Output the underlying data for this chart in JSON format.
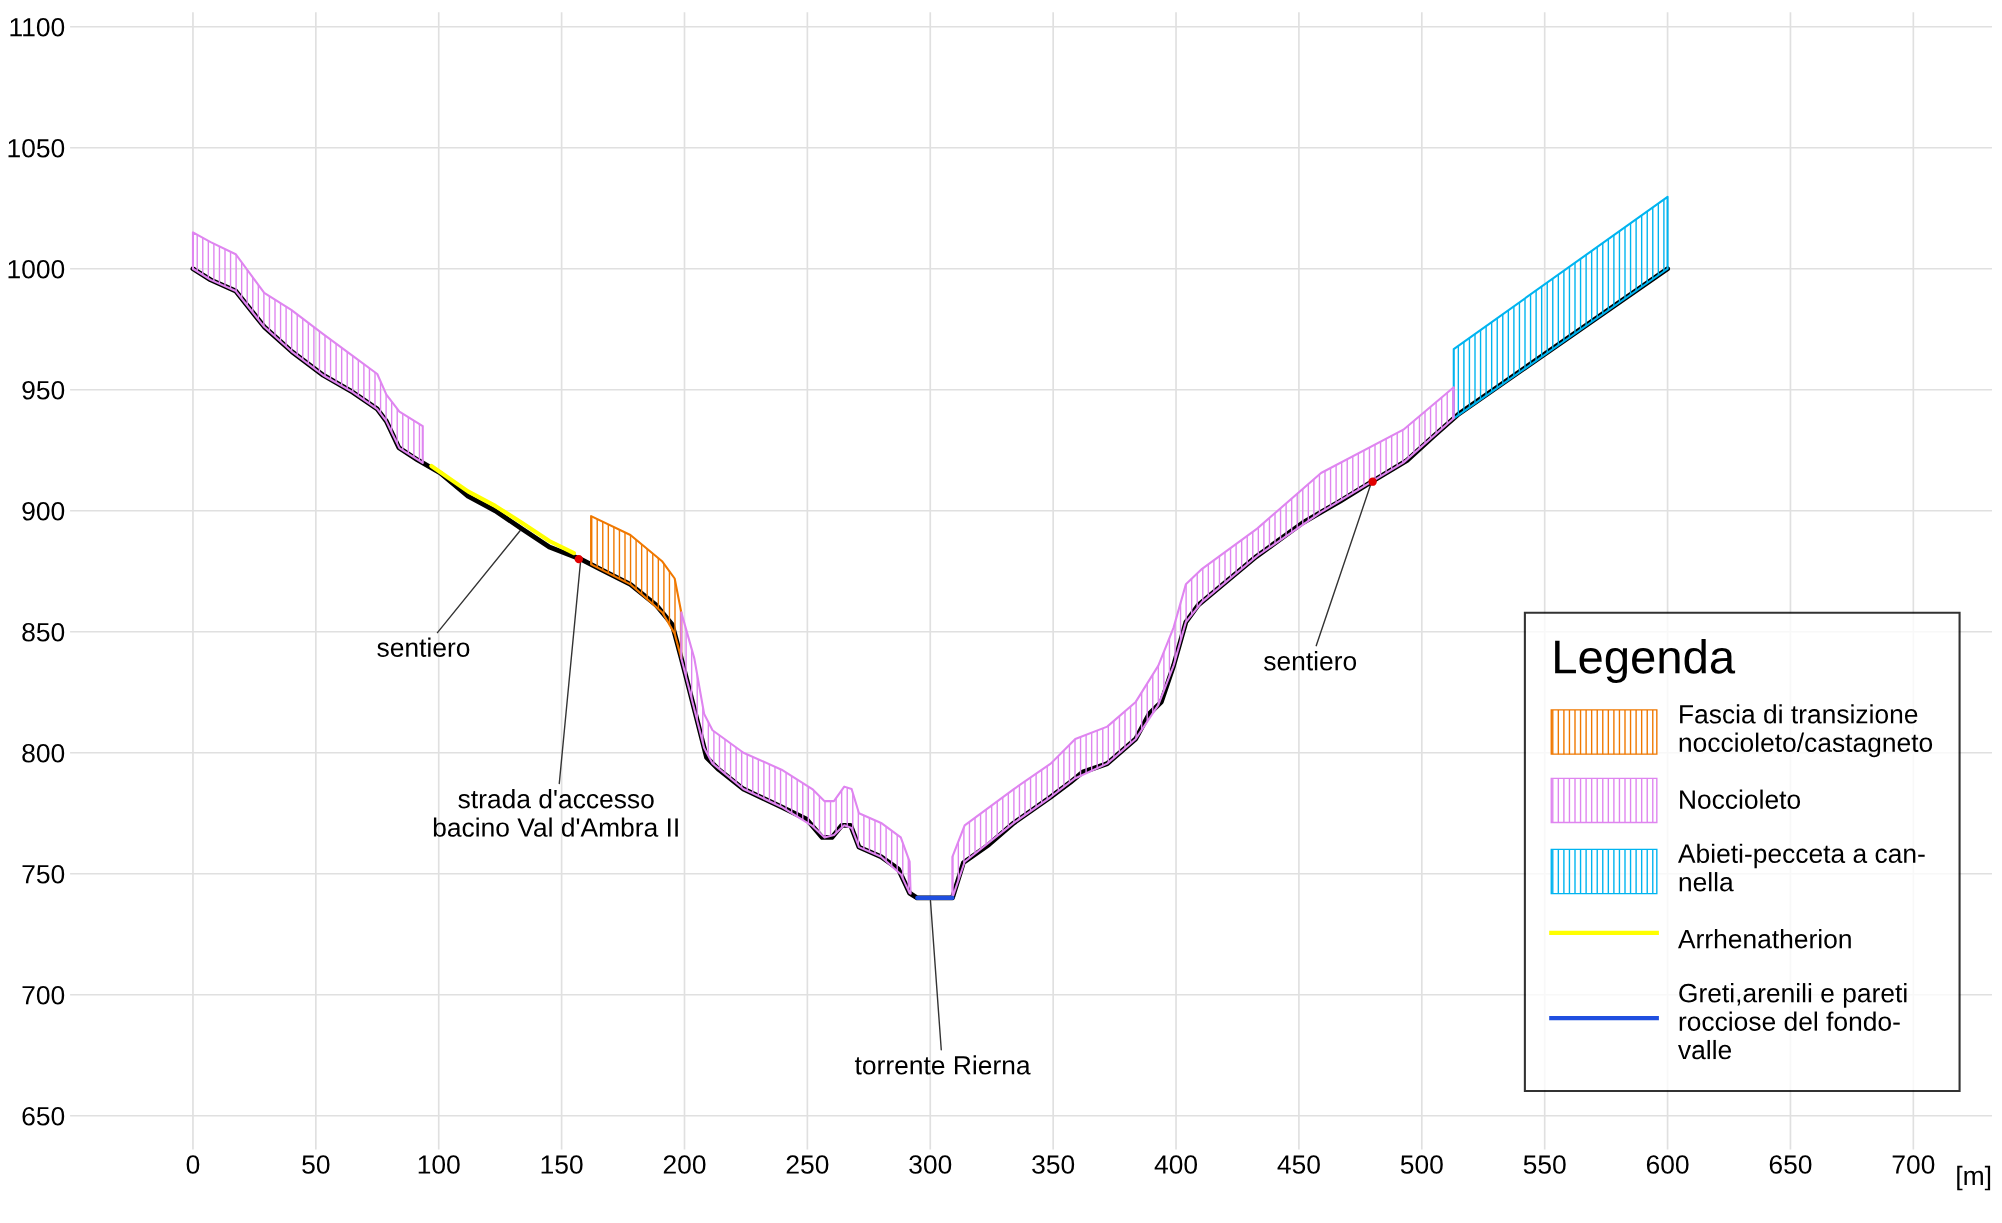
{
  "chart_data": {
    "type": "line",
    "xlabel": "[m]",
    "legend_title": "Legenda",
    "legend": "bottom right",
    "grid": true,
    "marker": "none",
    "xlim": [
      -50,
      732
    ],
    "ylim": [
      636,
      1106
    ],
    "xticks": [
      0,
      50,
      100,
      150,
      200,
      250,
      300,
      350,
      400,
      450,
      500,
      550,
      600,
      650,
      700
    ],
    "yticks": [
      650,
      700,
      750,
      800,
      850,
      900,
      950,
      1000,
      1050,
      1100
    ],
    "series": [
      {
        "type": "area",
        "name": "Fascia di transizione\nnoccioleto/castagneto",
        "color": "#f07800",
        "x": [
          162,
          178,
          191,
          196,
          198.7
        ],
        "values": [
          897.8,
          890,
          879,
          872,
          858
        ]
      },
      {
        "type": "area",
        "name": "Noccioleto",
        "color": "#df85f0",
        "x": [
          0,
          7.2,
          17.4,
          29,
          40,
          53,
          65,
          75,
          78.7,
          84,
          93.5
        ],
        "values": [
          1015,
          1011,
          1006,
          990,
          983,
          973,
          964,
          956.5,
          948,
          941,
          935
        ]
      },
      {
        "type": "area",
        "name": "Abieti-pecceta a can-\nnella",
        "color": "#00b4f0",
        "x": [
          513,
          600
        ],
        "values": [
          966.8,
          1029.7
        ]
      },
      {
        "type": "line",
        "name": "Arrhenatherion",
        "color": "#ffff00",
        "x": [
          97,
          111.9,
          123,
          133.8,
          145,
          155
        ],
        "values": [
          918.5,
          908,
          902,
          895,
          887.5,
          882.5
        ]
      },
      {
        "type": "line",
        "name": "Greti,arenili e pareti\nrocciose del fondo-\nvalle",
        "color": "#1f4fe0",
        "x": [
          294.7,
          309
        ],
        "values": [
          740,
          740
        ]
      },
      {
        "type": "area",
        "color": "#df85f0",
        "x": [
          198.7,
          204,
          208,
          211.4,
          224,
          239.5,
          252,
          257,
          260.8,
          265,
          268,
          271,
          280,
          288,
          291.6,
          292
        ],
        "values": [
          858,
          839,
          816,
          809.3,
          800,
          793,
          785,
          780,
          780,
          786,
          785,
          775,
          771,
          765,
          755,
          742
        ]
      },
      {
        "type": "area",
        "color": "#df85f0",
        "x": [
          309,
          314,
          334,
          349,
          359,
          372,
          383.6,
          392.8,
          399,
          404,
          410.6,
          433,
          459,
          492.5,
          513
        ],
        "values": [
          757,
          770,
          785,
          795.5,
          805.7,
          810.8,
          821,
          836,
          851.7,
          869.6,
          876,
          892.6,
          915.6,
          933.5,
          951
        ]
      },
      {
        "color": "#000000",
        "x": [
          0,
          7.2,
          17.4,
          29,
          40.3,
          53,
          65,
          75,
          78.7,
          83.8,
          91.4,
          100.6,
          111.9,
          123,
          133.8,
          145,
          157.8,
          165.5,
          178,
          188.5,
          195,
          198.7,
          202,
          205,
          209,
          214,
          224,
          239.5,
          249.7,
          256,
          260,
          264,
          267.6,
          271,
          280,
          287,
          291.6,
          294.7,
          309,
          313.5,
          323.8,
          334,
          349,
          357,
          362,
          372,
          383.6,
          389,
          394,
          399,
          404,
          409,
          420.8,
          432.6,
          451.5,
          466.8,
          479.6,
          494,
          505,
          515,
          600
        ],
        "values": [
          1000,
          995.4,
          990.8,
          976,
          965.7,
          956,
          949,
          942,
          937,
          926,
          921,
          915.6,
          906,
          900,
          892.6,
          885,
          880,
          876,
          869.6,
          861,
          853,
          839,
          826,
          814,
          798,
          793,
          785,
          777.6,
          772.5,
          765,
          765,
          770,
          770,
          761,
          757,
          752,
          742,
          740,
          740,
          754.6,
          762,
          771,
          781.7,
          787.8,
          792,
          795.5,
          805.7,
          816,
          821,
          836,
          854,
          861,
          871,
          881,
          895,
          904,
          912,
          920.8,
          931,
          940,
          1000
        ]
      },
      {
        "type": "scatter",
        "color": "#e00000",
        "x": [
          157,
          480
        ],
        "values": [
          880,
          912
        ]
      }
    ],
    "annotations": [
      {
        "text": "sentiero",
        "x": 133.8,
        "y": 892.6
      },
      {
        "text": "strada d'accesso\nbacino Val d'Ambra II",
        "x": 157.8,
        "y": 880
      },
      {
        "text": "torrente Rierna",
        "x": 300,
        "y": 740
      },
      {
        "text": "sentiero",
        "x": 479.6,
        "y": 912
      }
    ]
  }
}
